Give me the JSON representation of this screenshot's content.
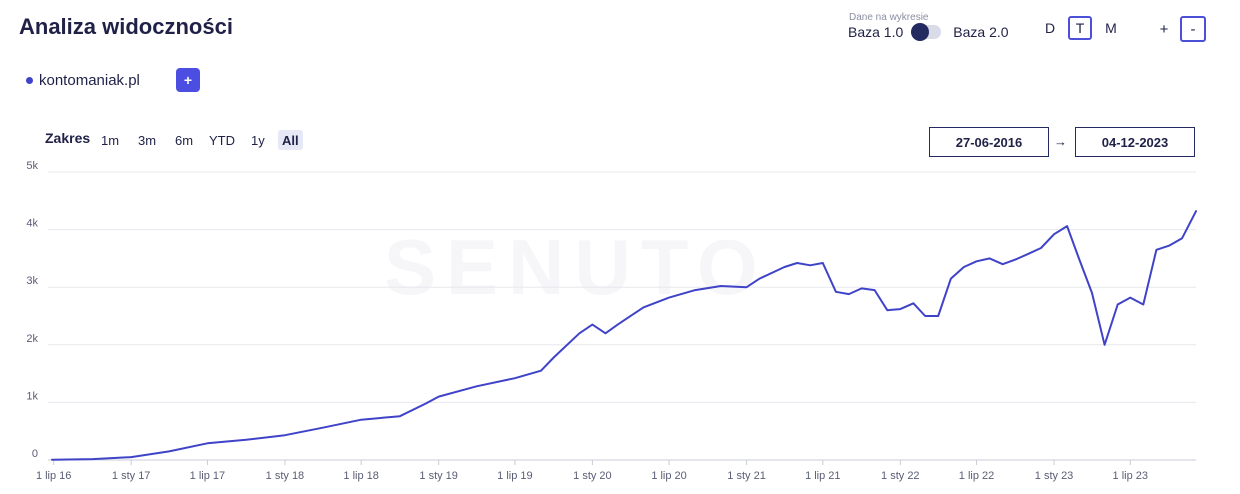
{
  "header": {
    "title": "Analiza widoczności",
    "data_toggle": {
      "caption": "Dane na wykresie",
      "left_label": "Baza 1.0",
      "right_label": "Baza 2.0",
      "selected": "Baza 1.0"
    },
    "period_buttons": [
      {
        "label": "D"
      },
      {
        "label": "T",
        "active": true
      },
      {
        "label": "M"
      }
    ],
    "zoom_in_label": "+",
    "zoom_out_label": "-"
  },
  "domains": [
    {
      "label": "kontomaniak.pl",
      "color": "#3f43c8"
    }
  ],
  "add_domain_label": "+",
  "range": {
    "label": "Zakres",
    "options": [
      {
        "label": "1m"
      },
      {
        "label": "3m"
      },
      {
        "label": "6m"
      },
      {
        "label": "YTD"
      },
      {
        "label": "1y"
      },
      {
        "label": "All",
        "active": true
      }
    ],
    "start_date": "27-06-2016",
    "arrow": "→",
    "end_date": "04-12-2023"
  },
  "watermark": "SENUTO",
  "chart_data": {
    "type": "line",
    "x": [
      "2016-06-27",
      "2016-10-01",
      "2017-01-01",
      "2017-04-01",
      "2017-07-01",
      "2017-10-01",
      "2018-01-01",
      "2018-04-01",
      "2018-07-01",
      "2018-10-01",
      "2018-12-01",
      "2019-01-01",
      "2019-04-01",
      "2019-07-01",
      "2019-09-01",
      "2019-10-01",
      "2019-12-01",
      "2020-01-01",
      "2020-02-01",
      "2020-03-01",
      "2020-05-01",
      "2020-07-01",
      "2020-09-01",
      "2020-11-01",
      "2021-01-01",
      "2021-02-01",
      "2021-04-01",
      "2021-05-01",
      "2021-06-01",
      "2021-07-01",
      "2021-08-01",
      "2021-09-01",
      "2021-10-01",
      "2021-11-01",
      "2021-12-01",
      "2022-01-01",
      "2022-02-01",
      "2022-03-01",
      "2022-04-01",
      "2022-05-01",
      "2022-06-01",
      "2022-07-01",
      "2022-08-01",
      "2022-09-01",
      "2022-10-01",
      "2022-11-01",
      "2022-12-01",
      "2023-01-01",
      "2023-02-01",
      "2023-03-01",
      "2023-04-01",
      "2023-05-01",
      "2023-06-01",
      "2023-07-01",
      "2023-08-01",
      "2023-09-01",
      "2023-10-01",
      "2023-11-01",
      "2023-12-04"
    ],
    "series": [
      {
        "values": [
          5,
          15,
          50,
          150,
          290,
          350,
          430,
          560,
          700,
          760,
          980,
          1100,
          1280,
          1420,
          1550,
          1780,
          2200,
          2350,
          2200,
          2350,
          2650,
          2820,
          2950,
          3020,
          3000,
          3150,
          3350,
          3420,
          3380,
          3420,
          2920,
          2880,
          2980,
          2950,
          2600,
          2620,
          2720,
          2500,
          2500,
          3150,
          3350,
          3450,
          3500,
          3400,
          3480,
          3580,
          3680,
          3920,
          4060,
          3500,
          2900,
          2000,
          2700,
          2820,
          2700,
          3650,
          3720,
          3850,
          4320
        ],
        "color": "#3f43c8"
      }
    ],
    "y_ticks": [
      "0",
      "1k",
      "2k",
      "3k",
      "4k",
      "5k"
    ],
    "ylim": [
      0,
      5000
    ],
    "xlim": [
      "2016-06-27",
      "2023-12-04"
    ],
    "x_tick_labels": [
      {
        "label": "1 lip 16",
        "date": "2016-07-01"
      },
      {
        "label": "1 sty 17",
        "date": "2017-01-01"
      },
      {
        "label": "1 lip 17",
        "date": "2017-07-01"
      },
      {
        "label": "1 sty 18",
        "date": "2018-01-01"
      },
      {
        "label": "1 lip 18",
        "date": "2018-07-01"
      },
      {
        "label": "1 sty 19",
        "date": "2019-01-01"
      },
      {
        "label": "1 lip 19",
        "date": "2019-07-01"
      },
      {
        "label": "1 sty 20",
        "date": "2020-01-01"
      },
      {
        "label": "1 lip 20",
        "date": "2020-07-01"
      },
      {
        "label": "1 sty 21",
        "date": "2021-01-01"
      },
      {
        "label": "1 lip 21",
        "date": "2021-07-01"
      },
      {
        "label": "1 sty 22",
        "date": "2022-01-01"
      },
      {
        "label": "1 lip 22",
        "date": "2022-07-01"
      },
      {
        "label": "1 sty 23",
        "date": "2023-01-01"
      },
      {
        "label": "1 lip 23",
        "date": "2023-07-01"
      }
    ],
    "grid": true,
    "legend": "top-left"
  }
}
